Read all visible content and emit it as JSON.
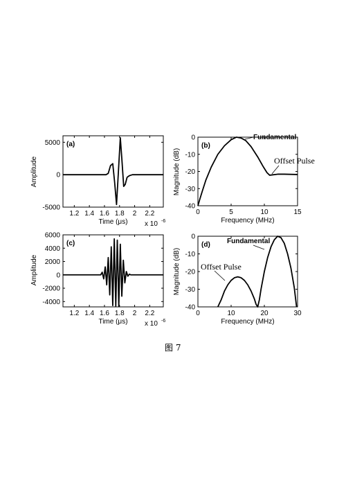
{
  "caption": "图 7",
  "chart_data": [
    {
      "panel": "(a)",
      "type": "line",
      "xlabel": "Time (μs)",
      "x_scale_label": "x 10",
      "x_scale_exp": "-6",
      "ylabel": "Amplitude",
      "xlim": [
        1.05e-06,
        2.38e-06
      ],
      "ylim": [
        -5000,
        6000
      ],
      "xticks": [
        1.2e-06,
        1.4e-06,
        1.6e-06,
        1.8e-06,
        2e-06,
        2.2e-06
      ],
      "xtick_labels": [
        "1.2",
        "1.4",
        "1.6",
        "1.8",
        "2",
        "2.2"
      ],
      "yticks": [
        5000,
        0,
        -5000
      ],
      "ytick_labels": [
        "5000",
        "0",
        "-5000"
      ],
      "series": [
        {
          "x": [
            1.05e-06,
            1.62e-06,
            1.65e-06,
            1.68e-06,
            1.71e-06,
            1.735e-06,
            1.76e-06,
            1.785e-06,
            1.81e-06,
            1.83e-06,
            1.855e-06,
            1.875e-06,
            1.9e-06,
            1.93e-06,
            1.97e-06,
            2.38e-06
          ],
          "y": [
            0,
            0,
            200,
            1400,
            1700,
            -1200,
            -4600,
            500,
            5700,
            2500,
            -1800,
            -1500,
            -400,
            -150,
            0,
            0
          ]
        }
      ]
    },
    {
      "panel": "(b)",
      "type": "line",
      "xlabel": "Frequency (MHz)",
      "ylabel": "Magnitude (dB)",
      "xlim": [
        0,
        15
      ],
      "ylim": [
        -40,
        0
      ],
      "xticks": [
        0,
        5,
        10,
        15
      ],
      "yticks": [
        0,
        -10,
        -20,
        -30,
        -40
      ],
      "annotations": [
        {
          "text": "Fundamental",
          "at": [
            6,
            0
          ]
        },
        {
          "text": "Offset Pulse",
          "at": [
            12.2,
            -21.5
          ]
        }
      ],
      "series": [
        {
          "x": [
            0,
            0.3,
            0.7,
            1.2,
            2,
            3,
            4,
            5,
            5.8,
            6.5,
            7.2,
            8,
            9,
            9.8,
            10.4,
            10.8,
            11.2,
            12,
            13,
            14,
            15
          ],
          "y": [
            -40,
            -36,
            -31,
            -25,
            -17.5,
            -10,
            -5,
            -1.5,
            0,
            -0.5,
            -2,
            -5.5,
            -11.5,
            -17,
            -20.7,
            -22.2,
            -22,
            -21.6,
            -21.6,
            -21.7,
            -21.8
          ]
        }
      ]
    },
    {
      "panel": "(c)",
      "type": "line",
      "xlabel": "Time (μs)",
      "x_scale_label": "x 10",
      "x_scale_exp": "-6",
      "ylabel": "Amplitude",
      "xlim": [
        1.05e-06,
        2.38e-06
      ],
      "ylim": [
        -4800,
        6000
      ],
      "xticks": [
        1.2e-06,
        1.4e-06,
        1.6e-06,
        1.8e-06,
        2e-06,
        2.2e-06
      ],
      "xtick_labels": [
        "1.2",
        "1.4",
        "1.6",
        "1.8",
        "2",
        "2.2"
      ],
      "yticks": [
        6000,
        4000,
        2000,
        0,
        -2000,
        -4000
      ],
      "ytick_labels": [
        "6000",
        "4000",
        "2000",
        "0",
        "-2000",
        "-4000"
      ],
      "series": [
        {
          "x": [
            1.05e-06,
            1.55e-06,
            1.57e-06,
            1.59e-06,
            1.61e-06,
            1.63e-06,
            1.65e-06,
            1.67e-06,
            1.69e-06,
            1.71e-06,
            1.73e-06,
            1.75e-06,
            1.77e-06,
            1.79e-06,
            1.81e-06,
            1.83e-06,
            1.85e-06,
            1.87e-06,
            1.89e-06,
            1.91e-06,
            1.93e-06,
            1.95e-06,
            2.38e-06
          ],
          "y": [
            0,
            0,
            400,
            -600,
            1200,
            -1500,
            2600,
            -3000,
            4200,
            -4600,
            5400,
            -4700,
            5200,
            -4700,
            4600,
            -3200,
            2200,
            -1200,
            500,
            -200,
            100,
            0,
            0
          ]
        }
      ]
    },
    {
      "panel": "(d)",
      "type": "line",
      "xlabel": "Frequency (MHz)",
      "ylabel": "Magnitude (dB)",
      "xlim": [
        0,
        30
      ],
      "ylim": [
        -40,
        0
      ],
      "xticks": [
        0,
        10,
        20,
        30
      ],
      "yticks": [
        0,
        -10,
        -20,
        -30,
        -40
      ],
      "annotations": [
        {
          "text": "Fundamental",
          "at": [
            20.5,
            -3
          ]
        },
        {
          "text": "Offset Pulse",
          "at": [
            8,
            -22
          ]
        }
      ],
      "series": [
        {
          "x": [
            6,
            7,
            8,
            9,
            10,
            11,
            12,
            13,
            14,
            15,
            16,
            17,
            17.5,
            18,
            18.5,
            19,
            20,
            21,
            22,
            23,
            24,
            25,
            26,
            27,
            28,
            29,
            29.7
          ],
          "y": [
            -40,
            -36,
            -31,
            -27.5,
            -25,
            -23.5,
            -23,
            -23.5,
            -25,
            -27.5,
            -31,
            -35.5,
            -38.5,
            -40,
            -36,
            -30,
            -20,
            -12,
            -6,
            -2,
            0,
            -0.8,
            -4,
            -10,
            -18,
            -29,
            -40
          ]
        }
      ]
    }
  ]
}
